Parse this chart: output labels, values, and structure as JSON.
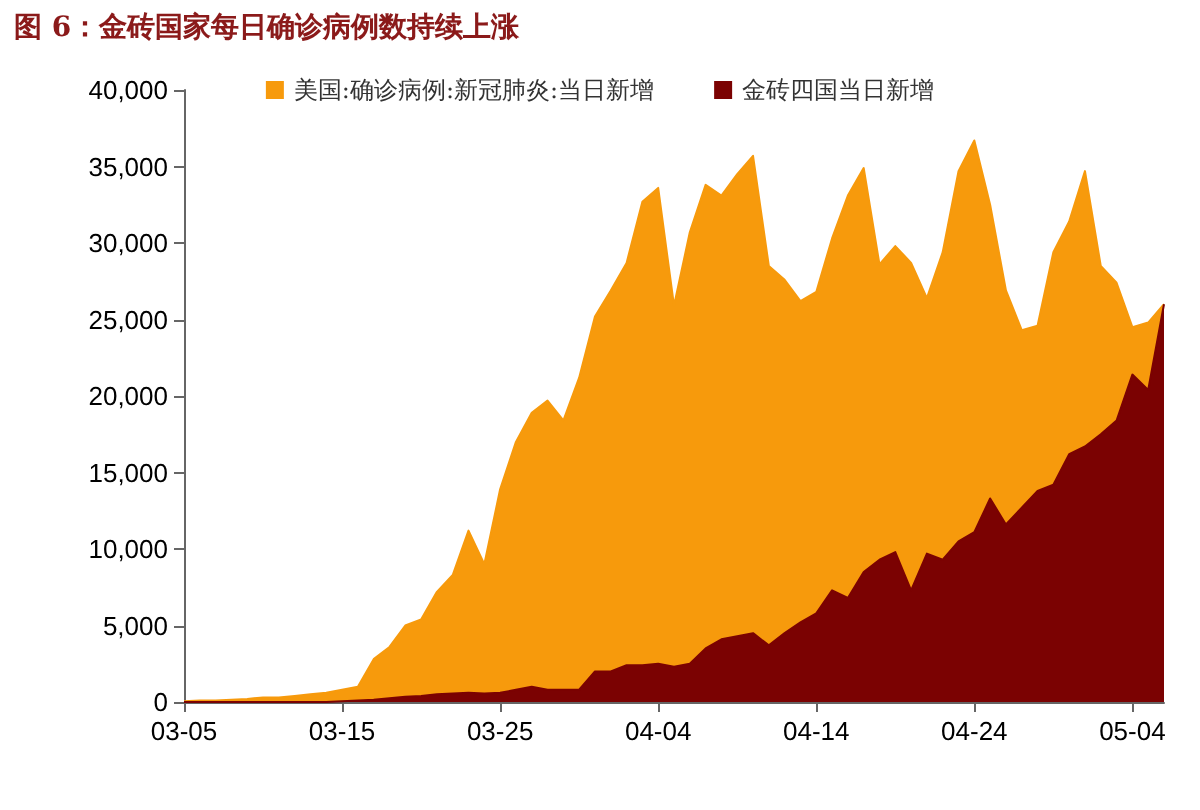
{
  "chart_data": {
    "type": "area",
    "title": "图 6：金砖国家每日确诊病例数持续上涨",
    "categories": [
      "03-05",
      null,
      null,
      null,
      null,
      null,
      null,
      null,
      null,
      null,
      "03-15",
      null,
      null,
      null,
      null,
      null,
      null,
      null,
      null,
      null,
      "03-25",
      null,
      null,
      null,
      null,
      null,
      null,
      null,
      null,
      null,
      "04-04",
      null,
      null,
      null,
      null,
      null,
      null,
      null,
      null,
      null,
      "04-14",
      null,
      null,
      null,
      null,
      null,
      null,
      null,
      null,
      null,
      "04-24",
      null,
      null,
      null,
      null,
      null,
      null,
      null,
      null,
      null,
      "05-04",
      null,
      null
    ],
    "series": [
      {
        "name": "美国:确诊病例:新冠肺炎:当日新增",
        "color": "#f79a0c",
        "values": [
          50,
          100,
          100,
          150,
          200,
          300,
          300,
          400,
          500,
          600,
          800,
          1000,
          2800,
          3600,
          5000,
          5400,
          7200,
          8300,
          11200,
          9000,
          13900,
          17000,
          18900,
          19700,
          18400,
          21200,
          25200,
          26900,
          28700,
          32700,
          33600,
          25900,
          30700,
          33800,
          33100,
          34500,
          35700,
          28500,
          27600,
          26200,
          26800,
          30300,
          33100,
          34900,
          28600,
          29800,
          28700,
          26400,
          29400,
          34700,
          36700,
          32500,
          26900,
          24300,
          24600,
          29400,
          31400,
          34700,
          28500,
          27400,
          24500,
          24800,
          26000
        ]
      },
      {
        "name": "金砖四国当日新增",
        "color": "#7b0202",
        "values": [
          0,
          0,
          0,
          0,
          0,
          0,
          0,
          0,
          0,
          0,
          50,
          100,
          150,
          250,
          350,
          400,
          500,
          550,
          600,
          550,
          600,
          800,
          1000,
          800,
          800,
          800,
          2000,
          2000,
          2400,
          2400,
          2500,
          2300,
          2500,
          3500,
          4100,
          4300,
          4500,
          3700,
          4500,
          5200,
          5800,
          7300,
          6800,
          8500,
          9300,
          9800,
          7300,
          9700,
          9300,
          10500,
          11100,
          13300,
          11600,
          12700,
          13800,
          14200,
          16200,
          16700,
          17500,
          18400,
          21400,
          20400,
          26000
        ]
      }
    ],
    "ylim": [
      0,
      40000
    ],
    "yticks": [
      {
        "value": 0,
        "label": "0"
      },
      {
        "value": 5000,
        "label": "5,000"
      },
      {
        "value": 10000,
        "label": "10,000"
      },
      {
        "value": 15000,
        "label": "15,000"
      },
      {
        "value": 20000,
        "label": "20,000"
      },
      {
        "value": 25000,
        "label": "25,000"
      },
      {
        "value": 30000,
        "label": "30,000"
      },
      {
        "value": 35000,
        "label": "35,000"
      },
      {
        "value": 40000,
        "label": "40,000"
      }
    ],
    "grid": false,
    "legend": "top"
  }
}
